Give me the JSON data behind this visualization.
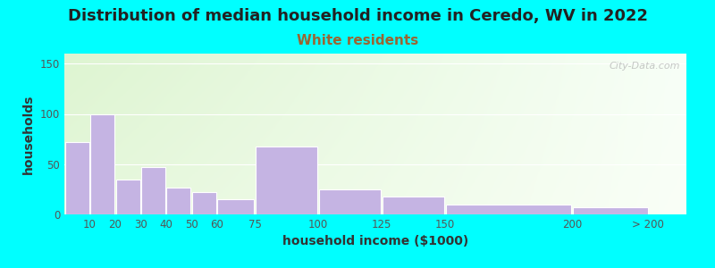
{
  "title": "Distribution of median household income in Ceredo, WV in 2022",
  "subtitle": "White residents",
  "xlabel": "household income ($1000)",
  "ylabel": "households",
  "background_color": "#00FFFF",
  "bar_color": "#C5B4E3",
  "subtitle_color": "#996633",
  "title_color": "#222222",
  "axis_label_color": "#333333",
  "tick_color": "#555555",
  "categories": [
    "10",
    "20",
    "30",
    "40",
    "50",
    "60",
    "75",
    "100",
    "125",
    "150",
    "200",
    "> 200"
  ],
  "bar_values": [
    72,
    100,
    35,
    47,
    27,
    22,
    15,
    68,
    25,
    18,
    10,
    7
  ],
  "bar_left_edges": [
    0,
    10,
    20,
    30,
    40,
    50,
    60,
    75,
    100,
    125,
    150,
    200
  ],
  "bar_widths": [
    10,
    10,
    10,
    10,
    10,
    10,
    15,
    25,
    25,
    25,
    50,
    30
  ],
  "xtick_positions": [
    10,
    20,
    30,
    40,
    50,
    60,
    75,
    100,
    125,
    150,
    200,
    230
  ],
  "xtick_labels": [
    "10",
    "20",
    "30",
    "40",
    "50",
    "60",
    "75",
    "100",
    "125",
    "150",
    "200",
    "> 200"
  ],
  "xlim": [
    0,
    245
  ],
  "ylim": [
    0,
    160
  ],
  "yticks": [
    0,
    50,
    100,
    150
  ],
  "title_fontsize": 13,
  "subtitle_fontsize": 11,
  "axis_label_fontsize": 10,
  "tick_fontsize": 8.5,
  "watermark_text": "City-Data.com"
}
